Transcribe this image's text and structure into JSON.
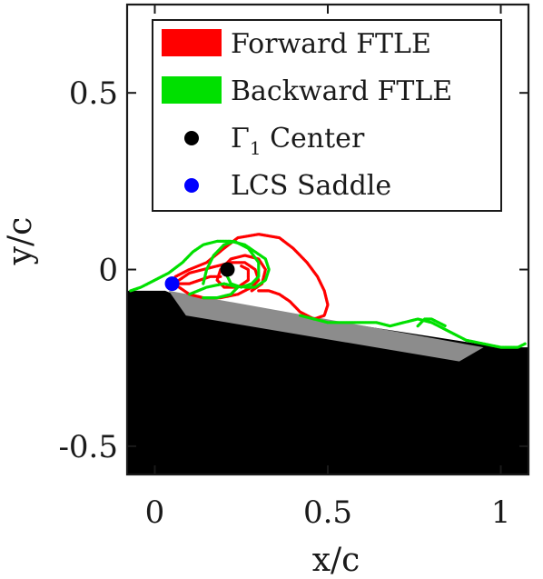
{
  "chart_data": {
    "type": "line",
    "xlabel": "x/c",
    "ylabel": "y/c",
    "xlim": [
      -0.08,
      1.08
    ],
    "ylim": [
      -0.58,
      0.75
    ],
    "x_ticks": [
      {
        "value": 0,
        "label": "0"
      },
      {
        "value": 0.5,
        "label": "0.5"
      },
      {
        "value": 1,
        "label": "1"
      }
    ],
    "y_ticks": [
      {
        "value": 0.5,
        "label": "0.5"
      },
      {
        "value": 0,
        "label": "0"
      },
      {
        "value": -0.5,
        "label": "-0.5"
      }
    ],
    "grid": false,
    "legend_position": "top-right",
    "series": [
      {
        "name": "Forward FTLE",
        "color": "#ff0000",
        "kind": "ridge",
        "paths": [
          [
            [
              0.06,
              -0.02
            ],
            [
              0.1,
              0.0
            ],
            [
              0.15,
              0.02
            ],
            [
              0.2,
              0.06
            ],
            [
              0.24,
              0.09
            ],
            [
              0.3,
              0.1
            ],
            [
              0.36,
              0.09
            ],
            [
              0.4,
              0.06
            ],
            [
              0.44,
              0.02
            ],
            [
              0.47,
              -0.02
            ],
            [
              0.49,
              -0.06
            ],
            [
              0.5,
              -0.1
            ],
            [
              0.49,
              -0.13
            ],
            [
              0.46,
              -0.14
            ],
            [
              0.42,
              -0.12
            ],
            [
              0.39,
              -0.09
            ],
            [
              0.36,
              -0.07
            ],
            [
              0.33,
              -0.06
            ],
            [
              0.3,
              -0.06
            ]
          ],
          [
            [
              0.28,
              -0.06
            ],
            [
              0.31,
              -0.04
            ],
            [
              0.32,
              0.0
            ],
            [
              0.3,
              0.03
            ],
            [
              0.26,
              0.04
            ],
            [
              0.22,
              0.03
            ],
            [
              0.19,
              0.0
            ],
            [
              0.18,
              -0.03
            ],
            [
              0.2,
              -0.05
            ],
            [
              0.24,
              -0.05
            ],
            [
              0.27,
              -0.03
            ],
            [
              0.27,
              0.0
            ],
            [
              0.25,
              0.01
            ]
          ],
          [
            [
              0.07,
              -0.03
            ],
            [
              0.1,
              -0.01
            ],
            [
              0.14,
              0.0
            ],
            [
              0.18,
              0.01
            ],
            [
              0.22,
              0.02
            ],
            [
              0.26,
              0.02
            ],
            [
              0.29,
              0.0
            ],
            [
              0.3,
              -0.03
            ],
            [
              0.28,
              -0.05
            ],
            [
              0.24,
              -0.07
            ],
            [
              0.19,
              -0.08
            ],
            [
              0.14,
              -0.08
            ],
            [
              0.1,
              -0.07
            ],
            [
              0.07,
              -0.05
            ]
          ],
          [
            [
              0.05,
              -0.03
            ],
            [
              0.07,
              -0.04
            ],
            [
              0.1,
              -0.04
            ],
            [
              0.13,
              -0.03
            ],
            [
              0.16,
              -0.02
            ],
            [
              0.19,
              -0.02
            ]
          ]
        ]
      },
      {
        "name": "Backward FTLE",
        "color": "#00e000",
        "kind": "ridge",
        "paths": [
          [
            [
              -0.07,
              -0.06
            ],
            [
              -0.04,
              -0.05
            ],
            [
              0.0,
              -0.03
            ],
            [
              0.04,
              -0.01
            ],
            [
              0.08,
              0.02
            ],
            [
              0.11,
              0.05
            ],
            [
              0.14,
              0.07
            ],
            [
              0.18,
              0.08
            ],
            [
              0.22,
              0.08
            ],
            [
              0.26,
              0.07
            ],
            [
              0.29,
              0.05
            ],
            [
              0.32,
              0.03
            ],
            [
              0.33,
              0.0
            ],
            [
              0.32,
              -0.03
            ],
            [
              0.29,
              -0.05
            ],
            [
              0.26,
              -0.05
            ]
          ],
          [
            [
              0.14,
              -0.04
            ],
            [
              0.15,
              0.0
            ],
            [
              0.17,
              0.04
            ],
            [
              0.2,
              0.07
            ],
            [
              0.23,
              0.08
            ],
            [
              0.27,
              0.06
            ],
            [
              0.3,
              0.02
            ],
            [
              0.3,
              -0.02
            ],
            [
              0.28,
              -0.04
            ],
            [
              0.25,
              -0.05
            ],
            [
              0.22,
              -0.04
            ],
            [
              0.21,
              -0.02
            ]
          ],
          [
            [
              0.1,
              -0.07
            ],
            [
              0.15,
              -0.05
            ],
            [
              0.2,
              -0.04
            ],
            [
              0.24,
              -0.05
            ],
            [
              0.22,
              -0.07
            ],
            [
              0.18,
              -0.08
            ],
            [
              0.14,
              -0.08
            ]
          ],
          [
            [
              0.42,
              -0.13
            ],
            [
              0.5,
              -0.15
            ],
            [
              0.58,
              -0.15
            ],
            [
              0.64,
              -0.15
            ],
            [
              0.68,
              -0.16
            ],
            [
              0.72,
              -0.15
            ],
            [
              0.76,
              -0.14
            ],
            [
              0.8,
              -0.15
            ],
            [
              0.84,
              -0.17
            ],
            [
              0.88,
              -0.19
            ],
            [
              0.9,
              -0.2
            ],
            [
              0.95,
              -0.21
            ],
            [
              1.0,
              -0.22
            ],
            [
              1.05,
              -0.22
            ],
            [
              1.07,
              -0.21
            ]
          ],
          [
            [
              0.76,
              -0.16
            ],
            [
              0.78,
              -0.14
            ],
            [
              0.8,
              -0.14
            ],
            [
              0.82,
              -0.15
            ],
            [
              0.84,
              -0.16
            ]
          ]
        ]
      }
    ],
    "points": [
      {
        "name": "Γ1 Center",
        "x": 0.21,
        "y": 0.0,
        "color": "#000000"
      },
      {
        "name": "LCS Saddle",
        "x": 0.05,
        "y": -0.04,
        "color": "#0000ff"
      }
    ],
    "shapes": [
      {
        "role": "solid-body",
        "color": "#000000",
        "polygon": [
          [
            -0.08,
            -0.06
          ],
          [
            0.03,
            -0.06
          ],
          [
            0.08,
            -0.08
          ],
          [
            1.0,
            -0.22
          ],
          [
            1.08,
            -0.22
          ],
          [
            1.08,
            -0.58
          ],
          [
            -0.08,
            -0.58
          ]
        ]
      },
      {
        "role": "plate-surface",
        "color": "#8c8c8c",
        "polygon": [
          [
            0.04,
            -0.06
          ],
          [
            0.95,
            -0.22
          ],
          [
            0.88,
            -0.26
          ],
          [
            0.09,
            -0.13
          ]
        ]
      }
    ],
    "legend": [
      {
        "label": "Forward FTLE",
        "marker": "patch",
        "color": "#ff0000"
      },
      {
        "label": "Backward FTLE",
        "marker": "patch",
        "color": "#00e000"
      },
      {
        "label": "Γ",
        "sub": "1",
        "suffix": " Center",
        "marker": "dot",
        "color": "#000000"
      },
      {
        "label": "LCS Saddle",
        "marker": "dot",
        "color": "#0000ff"
      }
    ]
  }
}
